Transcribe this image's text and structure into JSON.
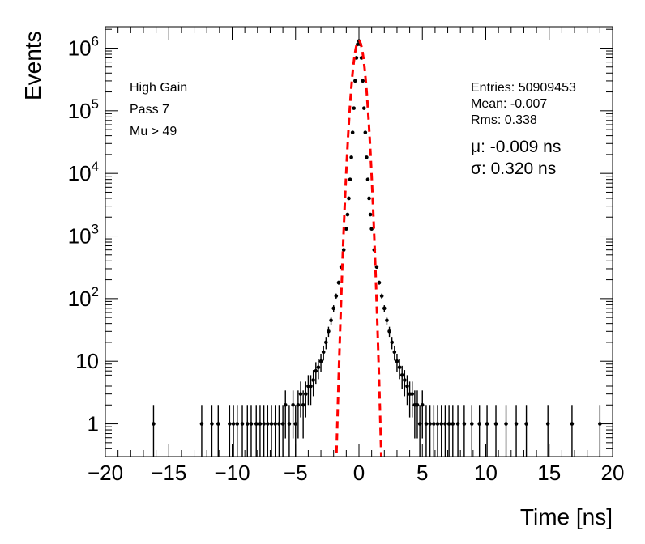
{
  "chart_data": {
    "type": "scatter",
    "xlabel": "Time [ns]",
    "ylabel": "Events",
    "xlim": [
      -20,
      20
    ],
    "ylim": [
      0.3,
      2200000
    ],
    "yscale": "log",
    "grid": false,
    "x_ticks": [
      -20,
      -15,
      -10,
      -5,
      0,
      5,
      10,
      15,
      20
    ],
    "x_tick_labels": [
      "−20",
      "−15",
      "−10",
      "−5",
      "0",
      "5",
      "10",
      "15",
      "20"
    ],
    "y_ticks": [
      {
        "value": 1,
        "base": "1",
        "exp": ""
      },
      {
        "value": 10,
        "base": "10",
        "exp": ""
      },
      {
        "value": 100,
        "base": "10",
        "exp": "2"
      },
      {
        "value": 1000,
        "base": "10",
        "exp": "3"
      },
      {
        "value": 10000,
        "base": "10",
        "exp": "4"
      },
      {
        "value": 100000,
        "base": "10",
        "exp": "5"
      },
      {
        "value": 1000000,
        "base": "10",
        "exp": "6"
      }
    ],
    "labels_left": [
      "High Gain",
      "Pass 7",
      "Mu > 49"
    ],
    "stats": [
      "Entries: 50909453",
      "Mean: -0.007",
      "Rms: 0.338"
    ],
    "fit_params": [
      "μ: -0.009 ns",
      "σ: 0.320 ns"
    ],
    "series": [
      {
        "type": "errorbar-points",
        "color": "#000000",
        "points": [
          [
            -16.2,
            1
          ],
          [
            -12.4,
            1
          ],
          [
            -11.6,
            1
          ],
          [
            -11.1,
            1
          ],
          [
            -10.2,
            1
          ],
          [
            -9.9,
            1
          ],
          [
            -9.6,
            1
          ],
          [
            -9.2,
            1
          ],
          [
            -8.8,
            1
          ],
          [
            -8.5,
            1
          ],
          [
            -8.1,
            1
          ],
          [
            -7.8,
            1
          ],
          [
            -7.5,
            1
          ],
          [
            -7.2,
            1
          ],
          [
            -6.9,
            1
          ],
          [
            -6.6,
            1
          ],
          [
            -6.3,
            1
          ],
          [
            -6.0,
            1
          ],
          [
            -5.8,
            2
          ],
          [
            -5.5,
            1
          ],
          [
            -5.2,
            2
          ],
          [
            -5.0,
            1
          ],
          [
            -4.8,
            2
          ],
          [
            -4.6,
            3
          ],
          [
            -4.4,
            2
          ],
          [
            -4.2,
            3
          ],
          [
            -4.0,
            4
          ],
          [
            -3.8,
            4
          ],
          [
            -3.6,
            5
          ],
          [
            -3.4,
            7
          ],
          [
            -3.2,
            8
          ],
          [
            -3.0,
            10
          ],
          [
            -2.8,
            14
          ],
          [
            -2.6,
            20
          ],
          [
            -2.4,
            30
          ],
          [
            -2.2,
            45
          ],
          [
            -2.0,
            70
          ],
          [
            -1.8,
            110
          ],
          [
            -1.6,
            180
          ],
          [
            -1.4,
            320
          ],
          [
            -1.2,
            600
          ],
          [
            -1.0,
            1300
          ],
          [
            -0.9,
            2200
          ],
          [
            -0.8,
            4000
          ],
          [
            -0.7,
            8000
          ],
          [
            -0.6,
            18000
          ],
          [
            -0.5,
            45000
          ],
          [
            -0.4,
            110000
          ],
          [
            -0.3,
            300000
          ],
          [
            -0.2,
            700000
          ],
          [
            -0.1,
            1150000
          ],
          [
            0.0,
            1300000
          ],
          [
            0.1,
            1150000
          ],
          [
            0.2,
            700000
          ],
          [
            0.3,
            300000
          ],
          [
            0.4,
            110000
          ],
          [
            0.5,
            45000
          ],
          [
            0.6,
            18000
          ],
          [
            0.7,
            8000
          ],
          [
            0.8,
            4000
          ],
          [
            0.9,
            2200
          ],
          [
            1.0,
            1300
          ],
          [
            1.2,
            600
          ],
          [
            1.4,
            320
          ],
          [
            1.6,
            180
          ],
          [
            1.8,
            110
          ],
          [
            2.0,
            70
          ],
          [
            2.2,
            45
          ],
          [
            2.4,
            30
          ],
          [
            2.6,
            20
          ],
          [
            2.8,
            14
          ],
          [
            3.0,
            10
          ],
          [
            3.2,
            8
          ],
          [
            3.4,
            6
          ],
          [
            3.6,
            5
          ],
          [
            3.8,
            4
          ],
          [
            4.0,
            3
          ],
          [
            4.2,
            3
          ],
          [
            4.4,
            2
          ],
          [
            4.6,
            2
          ],
          [
            4.8,
            1
          ],
          [
            5.0,
            2
          ],
          [
            5.3,
            1
          ],
          [
            5.6,
            1
          ],
          [
            5.9,
            1
          ],
          [
            6.2,
            1
          ],
          [
            6.5,
            1
          ],
          [
            6.8,
            1
          ],
          [
            7.1,
            1
          ],
          [
            7.4,
            1
          ],
          [
            7.8,
            1
          ],
          [
            8.3,
            1
          ],
          [
            8.9,
            1
          ],
          [
            9.5,
            1
          ],
          [
            10.1,
            1
          ],
          [
            10.8,
            1
          ],
          [
            11.6,
            1
          ],
          [
            12.4,
            1
          ],
          [
            13.2,
            1
          ],
          [
            14.9,
            1
          ],
          [
            16.8,
            1
          ],
          [
            19.0,
            1
          ]
        ]
      },
      {
        "type": "gaussian-fit",
        "color": "#ff0000",
        "mu": -0.009,
        "sigma": 0.32,
        "amplitude": 1300000
      }
    ]
  }
}
